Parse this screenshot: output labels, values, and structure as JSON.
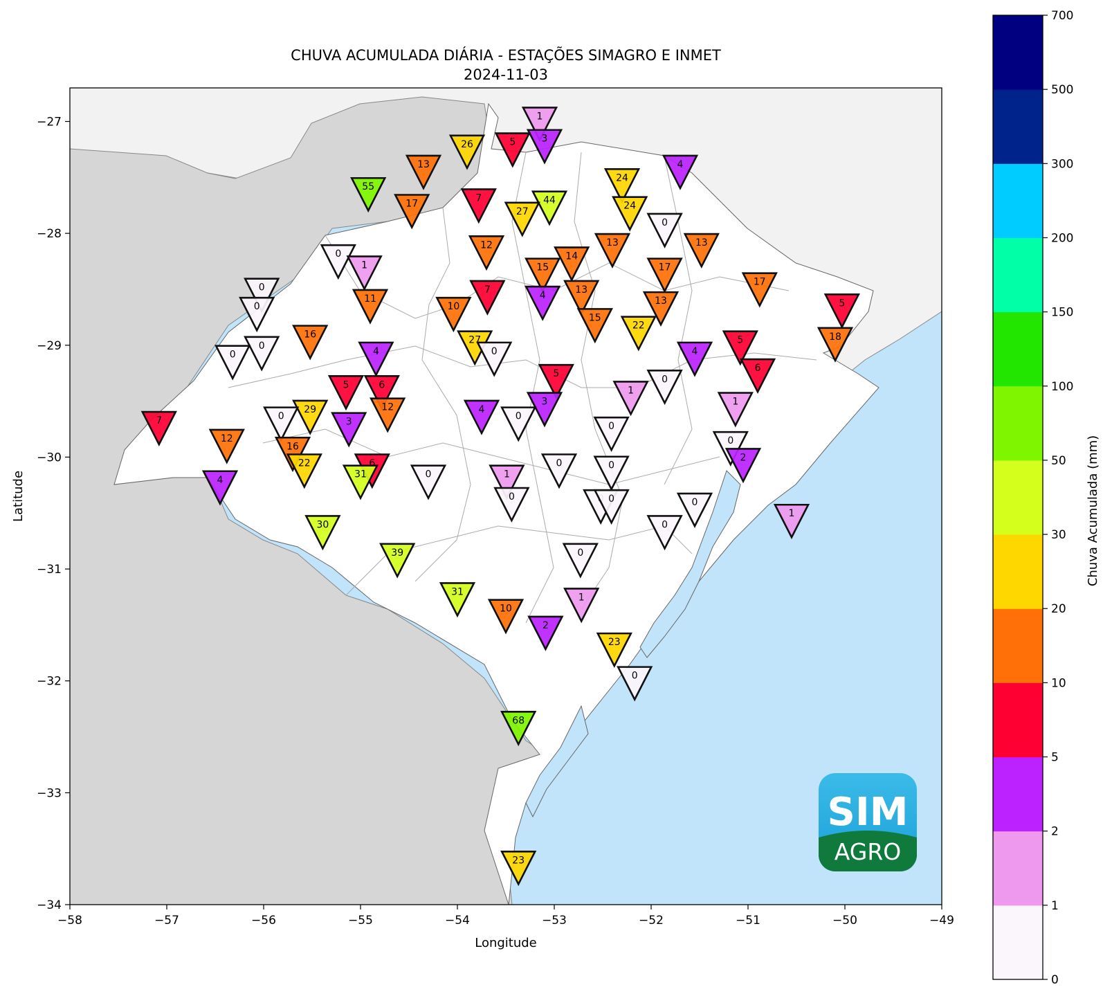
{
  "title": "CHUVA ACUMULADA DIÁRIA - ESTAÇÕES SIMAGRO E INMET",
  "subtitle": "2024-11-03",
  "xlabel": "Longitude",
  "ylabel": "Latitude",
  "colorbar_label": "Chuva Acumulada (mm)",
  "logo": {
    "top": "SIM",
    "bottom": "AGRO"
  },
  "chart_data": {
    "type": "scatter",
    "title": "CHUVA ACUMULADA DIÁRIA - ESTAÇÕES SIMAGRO E INMET",
    "subtitle": "2024-11-03",
    "xlabel": "Longitude",
    "ylabel": "Latitude",
    "xlim": [
      -58,
      -49
    ],
    "ylim": [
      -34,
      -26.7
    ],
    "xticks": [
      -58,
      -57,
      -56,
      -55,
      -54,
      -53,
      -52,
      -51,
      -50,
      -49
    ],
    "yticks": [
      -34,
      -33,
      -32,
      -31,
      -30,
      -29,
      -28,
      -27
    ],
    "colorbar": {
      "label": "Chuva Acumulada (mm)",
      "bounds": [
        0,
        1,
        2,
        5,
        10,
        20,
        30,
        50,
        100,
        150,
        200,
        300,
        500,
        700
      ],
      "colors": [
        "#fbf5fc",
        "#ee99ee",
        "#bb22ff",
        "#ff0033",
        "#ff7008",
        "#ffd700",
        "#d4ff1d",
        "#7ff600",
        "#23e600",
        "#00ffa6",
        "#00ccff",
        "#00238b",
        "#000080"
      ]
    },
    "stations": [
      {
        "lon": -53.15,
        "lat": -26.95,
        "value": 1
      },
      {
        "lon": -53.1,
        "lat": -27.15,
        "value": 3
      },
      {
        "lon": -53.43,
        "lat": -27.18,
        "value": 5
      },
      {
        "lon": -53.9,
        "lat": -27.2,
        "value": 26
      },
      {
        "lon": -54.35,
        "lat": -27.38,
        "value": 13
      },
      {
        "lon": -54.92,
        "lat": -27.58,
        "value": 55
      },
      {
        "lon": -54.47,
        "lat": -27.73,
        "value": 17
      },
      {
        "lon": -53.78,
        "lat": -27.68,
        "value": 7
      },
      {
        "lon": -53.05,
        "lat": -27.7,
        "value": 44
      },
      {
        "lon": -53.33,
        "lat": -27.8,
        "value": 27
      },
      {
        "lon": -51.7,
        "lat": -27.38,
        "value": 4
      },
      {
        "lon": -52.3,
        "lat": -27.5,
        "value": 24
      },
      {
        "lon": -52.22,
        "lat": -27.75,
        "value": 24
      },
      {
        "lon": -51.86,
        "lat": -27.9,
        "value": 0
      },
      {
        "lon": -51.48,
        "lat": -28.08,
        "value": 13
      },
      {
        "lon": -52.4,
        "lat": -28.08,
        "value": 13
      },
      {
        "lon": -53.7,
        "lat": -28.1,
        "value": 12
      },
      {
        "lon": -52.82,
        "lat": -28.2,
        "value": 14
      },
      {
        "lon": -53.12,
        "lat": -28.3,
        "value": 15
      },
      {
        "lon": -51.86,
        "lat": -28.3,
        "value": 17
      },
      {
        "lon": -50.88,
        "lat": -28.43,
        "value": 17
      },
      {
        "lon": -52.72,
        "lat": -28.5,
        "value": 13
      },
      {
        "lon": -53.69,
        "lat": -28.5,
        "value": 7
      },
      {
        "lon": -53.12,
        "lat": -28.55,
        "value": 4
      },
      {
        "lon": -51.9,
        "lat": -28.6,
        "value": 13
      },
      {
        "lon": -54.04,
        "lat": -28.65,
        "value": 10
      },
      {
        "lon": -52.58,
        "lat": -28.75,
        "value": 15
      },
      {
        "lon": -52.13,
        "lat": -28.82,
        "value": 22
      },
      {
        "lon": -50.03,
        "lat": -28.62,
        "value": 5
      },
      {
        "lon": -50.1,
        "lat": -28.92,
        "value": 18
      },
      {
        "lon": -55.23,
        "lat": -28.18,
        "value": 0
      },
      {
        "lon": -54.96,
        "lat": -28.28,
        "value": 1
      },
      {
        "lon": -54.9,
        "lat": -28.58,
        "value": 11
      },
      {
        "lon": -56.02,
        "lat": -28.48,
        "value": 0
      },
      {
        "lon": -56.07,
        "lat": -28.65,
        "value": 0
      },
      {
        "lon": -55.52,
        "lat": -28.9,
        "value": 16
      },
      {
        "lon": -56.02,
        "lat": -29.0,
        "value": 0
      },
      {
        "lon": -56.32,
        "lat": -29.08,
        "value": 0
      },
      {
        "lon": -53.82,
        "lat": -28.95,
        "value": 27
      },
      {
        "lon": -53.62,
        "lat": -29.05,
        "value": 0
      },
      {
        "lon": -54.84,
        "lat": -29.05,
        "value": 4
      },
      {
        "lon": -52.98,
        "lat": -29.25,
        "value": 5
      },
      {
        "lon": -51.08,
        "lat": -28.95,
        "value": 5
      },
      {
        "lon": -51.55,
        "lat": -29.05,
        "value": 4
      },
      {
        "lon": -50.9,
        "lat": -29.2,
        "value": 6
      },
      {
        "lon": -51.86,
        "lat": -29.3,
        "value": 0
      },
      {
        "lon": -52.21,
        "lat": -29.4,
        "value": 1
      },
      {
        "lon": -51.13,
        "lat": -29.5,
        "value": 1
      },
      {
        "lon": -55.15,
        "lat": -29.35,
        "value": 5
      },
      {
        "lon": -54.78,
        "lat": -29.35,
        "value": 6
      },
      {
        "lon": -54.72,
        "lat": -29.55,
        "value": 12
      },
      {
        "lon": -53.1,
        "lat": -29.5,
        "value": 3
      },
      {
        "lon": -53.75,
        "lat": -29.57,
        "value": 4
      },
      {
        "lon": -53.37,
        "lat": -29.63,
        "value": 0
      },
      {
        "lon": -52.41,
        "lat": -29.72,
        "value": 0
      },
      {
        "lon": -55.52,
        "lat": -29.57,
        "value": 29
      },
      {
        "lon": -55.82,
        "lat": -29.63,
        "value": 0
      },
      {
        "lon": -55.12,
        "lat": -29.68,
        "value": 3
      },
      {
        "lon": -57.08,
        "lat": -29.67,
        "value": 7
      },
      {
        "lon": -56.38,
        "lat": -29.83,
        "value": 12
      },
      {
        "lon": -55.7,
        "lat": -29.9,
        "value": 16
      },
      {
        "lon": -55.58,
        "lat": -30.05,
        "value": 22
      },
      {
        "lon": -51.18,
        "lat": -29.85,
        "value": 0
      },
      {
        "lon": -51.05,
        "lat": -30.0,
        "value": 2
      },
      {
        "lon": -54.88,
        "lat": -30.05,
        "value": 6
      },
      {
        "lon": -55.0,
        "lat": -30.15,
        "value": 31
      },
      {
        "lon": -56.45,
        "lat": -30.2,
        "value": 4
      },
      {
        "lon": -54.3,
        "lat": -30.15,
        "value": 0
      },
      {
        "lon": -53.49,
        "lat": -30.15,
        "value": 1
      },
      {
        "lon": -53.44,
        "lat": -30.35,
        "value": 0
      },
      {
        "lon": -52.95,
        "lat": -30.05,
        "value": 0
      },
      {
        "lon": -52.41,
        "lat": -30.07,
        "value": 0
      },
      {
        "lon": -52.52,
        "lat": -30.37,
        "value": 0
      },
      {
        "lon": -52.41,
        "lat": -30.37,
        "value": 0
      },
      {
        "lon": -51.55,
        "lat": -30.4,
        "value": 0
      },
      {
        "lon": -51.86,
        "lat": -30.6,
        "value": 0
      },
      {
        "lon": -50.55,
        "lat": -30.5,
        "value": 1
      },
      {
        "lon": -55.39,
        "lat": -30.6,
        "value": 30
      },
      {
        "lon": -54.62,
        "lat": -30.85,
        "value": 39
      },
      {
        "lon": -52.73,
        "lat": -30.85,
        "value": 0
      },
      {
        "lon": -54.0,
        "lat": -31.2,
        "value": 31
      },
      {
        "lon": -52.72,
        "lat": -31.25,
        "value": 1
      },
      {
        "lon": -53.5,
        "lat": -31.35,
        "value": 10
      },
      {
        "lon": -53.09,
        "lat": -31.5,
        "value": 2
      },
      {
        "lon": -52.38,
        "lat": -31.65,
        "value": 23
      },
      {
        "lon": -52.17,
        "lat": -31.95,
        "value": 0
      },
      {
        "lon": -53.37,
        "lat": -32.35,
        "value": 68
      },
      {
        "lon": -53.37,
        "lat": -33.6,
        "value": 23
      }
    ]
  }
}
